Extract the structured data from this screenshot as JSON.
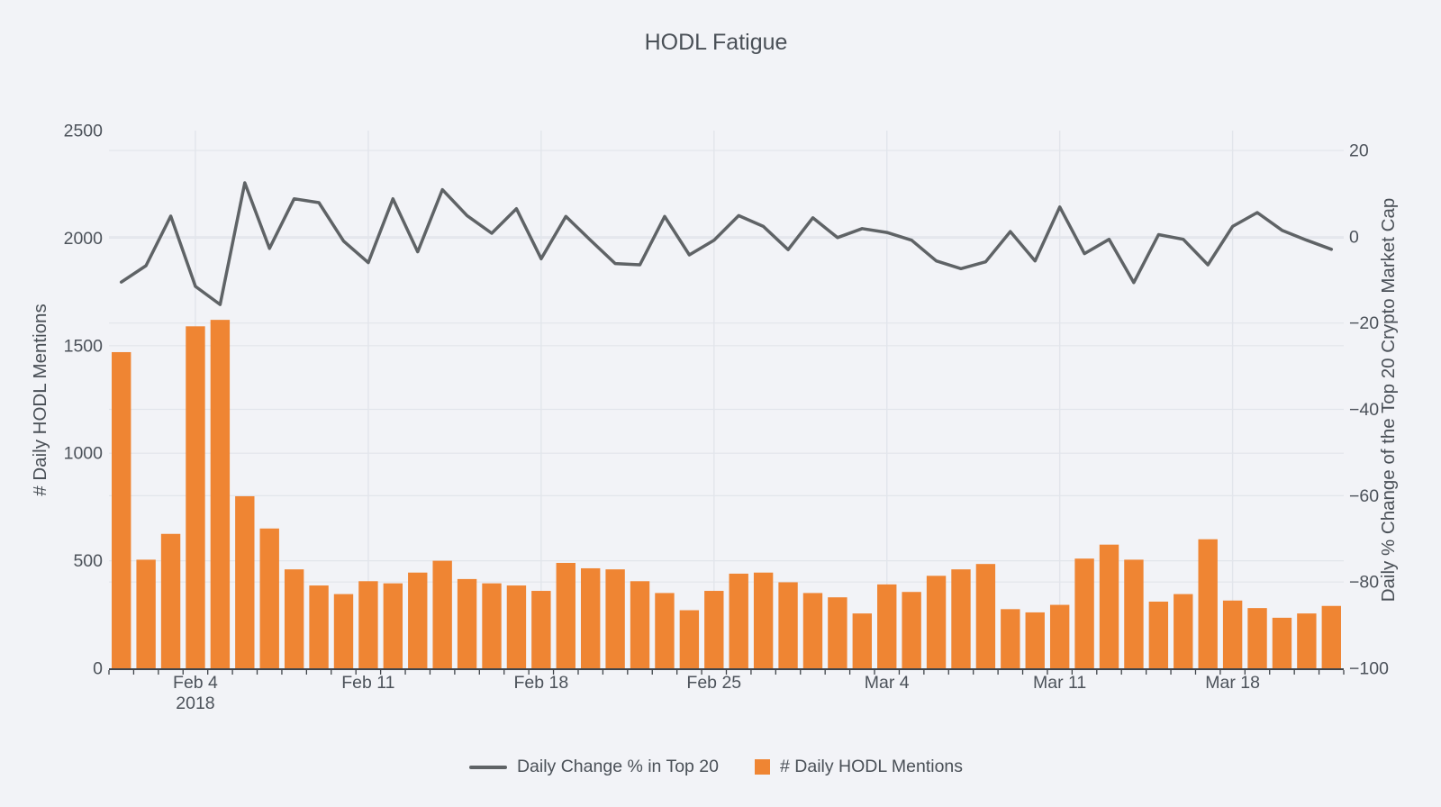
{
  "chart_data": {
    "type": "bar",
    "title": "HODL Fatigue",
    "x": [
      "Feb 1",
      "Feb 2",
      "Feb 3",
      "Feb 4",
      "Feb 5",
      "Feb 6",
      "Feb 7",
      "Feb 8",
      "Feb 9",
      "Feb 10",
      "Feb 11",
      "Feb 12",
      "Feb 13",
      "Feb 14",
      "Feb 15",
      "Feb 16",
      "Feb 17",
      "Feb 18",
      "Feb 19",
      "Feb 20",
      "Feb 21",
      "Feb 22",
      "Feb 23",
      "Feb 24",
      "Feb 25",
      "Feb 26",
      "Feb 27",
      "Feb 28",
      "Mar 1",
      "Mar 2",
      "Mar 3",
      "Mar 4",
      "Mar 5",
      "Mar 6",
      "Mar 7",
      "Mar 8",
      "Mar 9",
      "Mar 10",
      "Mar 11",
      "Mar 12",
      "Mar 13",
      "Mar 14",
      "Mar 15",
      "Mar 16",
      "Mar 17",
      "Mar 18",
      "Mar 19",
      "Mar 20",
      "Mar 21",
      "Mar 22"
    ],
    "series": [
      {
        "name": "Daily Change % in Top 20",
        "type": "line",
        "axis": "right",
        "color": "#5F6366",
        "values": [
          -10.5,
          -6.7,
          4.8,
          -11.5,
          -15.7,
          12.5,
          -2.7,
          8.8,
          7.9,
          -1.0,
          -6.0,
          8.8,
          -3.5,
          10.9,
          4.9,
          0.8,
          6.5,
          -5.1,
          4.7,
          -0.8,
          -6.2,
          -6.5,
          4.7,
          -4.2,
          -0.8,
          4.9,
          2.4,
          -3.0,
          4.4,
          -0.2,
          1.9,
          1.0,
          -0.8,
          -5.6,
          -7.4,
          -5.8,
          1.2,
          -5.6,
          6.9,
          -3.9,
          -0.6,
          -10.6,
          0.5,
          -0.6,
          -6.5,
          2.4,
          5.6,
          1.5,
          -0.8,
          -2.9
        ]
      },
      {
        "name": "# Daily HODL Mentions",
        "type": "bar",
        "axis": "left",
        "color": "#EF8533",
        "values": [
          1470,
          505,
          625,
          1590,
          1620,
          800,
          650,
          460,
          385,
          345,
          405,
          395,
          445,
          500,
          415,
          395,
          385,
          360,
          490,
          465,
          460,
          405,
          350,
          270,
          360,
          440,
          445,
          400,
          350,
          330,
          255,
          390,
          355,
          430,
          460,
          485,
          275,
          260,
          295,
          510,
          575,
          505,
          310,
          345,
          600,
          315,
          280,
          235,
          255,
          290
        ]
      }
    ],
    "left_axis": {
      "title": "# Daily HODL Mentions",
      "min": 0,
      "max": 2500,
      "ticks": [
        0,
        500,
        1000,
        1500,
        2000,
        2500
      ],
      "gridline_values": [
        500,
        1000,
        1500,
        2000
      ]
    },
    "right_axis": {
      "title": "Daily % Change of the Top 20 Crypto Market Cap",
      "min": -100,
      "max": 24.6,
      "ticks": [
        20,
        0,
        -20,
        -40,
        -60,
        -80,
        -100
      ],
      "gridline_values": [
        20,
        0,
        -20,
        -40,
        -60,
        -80
      ]
    },
    "x_axis": {
      "ticks": [
        {
          "index": 3,
          "label": "Feb 4",
          "sublabel": "2018"
        },
        {
          "index": 10,
          "label": "Feb 11"
        },
        {
          "index": 17,
          "label": "Feb 18"
        },
        {
          "index": 24,
          "label": "Feb 25"
        },
        {
          "index": 31,
          "label": "Mar 4"
        },
        {
          "index": 38,
          "label": "Mar 11"
        },
        {
          "index": 45,
          "label": "Mar 18"
        }
      ]
    },
    "legend_position": "bottom-center",
    "grid": true,
    "colors": {
      "background": "#F2F3F7",
      "gridline": "#E2E5EB",
      "axis_line": "#3F444A",
      "tick_text": "#4C525A",
      "bar": "#EF8533",
      "line": "#5F6366"
    }
  }
}
